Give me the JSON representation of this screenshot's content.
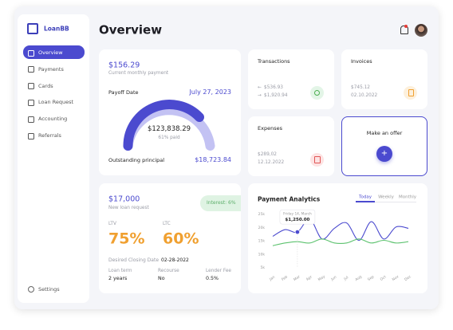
{
  "sidebar": {
    "logo": "LoanBB",
    "nav": [
      "Overview",
      "Payments",
      "Cards",
      "Loan Request",
      "Accounting",
      "Referrals"
    ],
    "settings": "Settings"
  },
  "header": {
    "title": "Overview"
  },
  "payment_card": {
    "amount": "$156.29",
    "subtitle": "Current monthly payment",
    "payoff_label": "Payoff Date",
    "payoff_date": "July 27, 2023",
    "gauge_amount": "$123,838.29",
    "gauge_caption": "61% paid",
    "principal_label": "Outstanding principal",
    "principal_amount": "$18,723.84"
  },
  "transactions": {
    "title": "Transactions",
    "incoming": "$536.93",
    "outgoing": "$1,920.94"
  },
  "invoices": {
    "title": "Invoices",
    "amount": "$745.12",
    "date": "02.10.2022"
  },
  "expenses": {
    "title": "Expenses",
    "amount": "$289,02",
    "date": "12.12.2022"
  },
  "offer": {
    "title": "Make an offer",
    "button": "+"
  },
  "loan_card": {
    "amount": "$17,000",
    "subtitle": "New loan request",
    "interest": "Interest: 6%",
    "ltv_label": "LTV",
    "ltv": "75%",
    "ltc_label": "LTC",
    "ltc": "60%",
    "closing_label": "Desired Closing Date",
    "closing_date": "02-28-2022",
    "details": [
      {
        "label": "Loan term",
        "value": "2 years"
      },
      {
        "label": "Recourse",
        "value": "No"
      },
      {
        "label": "Lender Fee",
        "value": "0.5%"
      }
    ]
  },
  "chart_data": {
    "type": "line",
    "title": "Payment Analytics",
    "tabs": [
      "Today",
      "Weekly",
      "Monthly"
    ],
    "categories": [
      "Jan",
      "Feb",
      "Mar",
      "Apr",
      "May",
      "Jun",
      "Jul",
      "Aug",
      "Sep",
      "Oct",
      "Nov",
      "Dec"
    ],
    "series": [
      {
        "color": "#4b4acf",
        "values": [
          16500,
          19000,
          18100,
          23000,
          15500,
          19500,
          21500,
          15000,
          22000,
          15500,
          20000,
          19500
        ]
      },
      {
        "color": "#5cc26e",
        "values": [
          13000,
          14000,
          14500,
          14000,
          15500,
          14000,
          14000,
          15500,
          14000,
          15000,
          14000,
          14500
        ]
      }
    ],
    "ylim": [
      5000,
      25000
    ],
    "yticks": [
      {
        "value": 5000,
        "label": "5k"
      },
      {
        "value": 10000,
        "label": "10k"
      },
      {
        "value": 15000,
        "label": "15k"
      },
      {
        "value": 20000,
        "label": "20k"
      },
      {
        "value": 25000,
        "label": "25k"
      }
    ],
    "tooltip": {
      "date": "Friday 14, March",
      "amount": "$1,250.00"
    }
  }
}
